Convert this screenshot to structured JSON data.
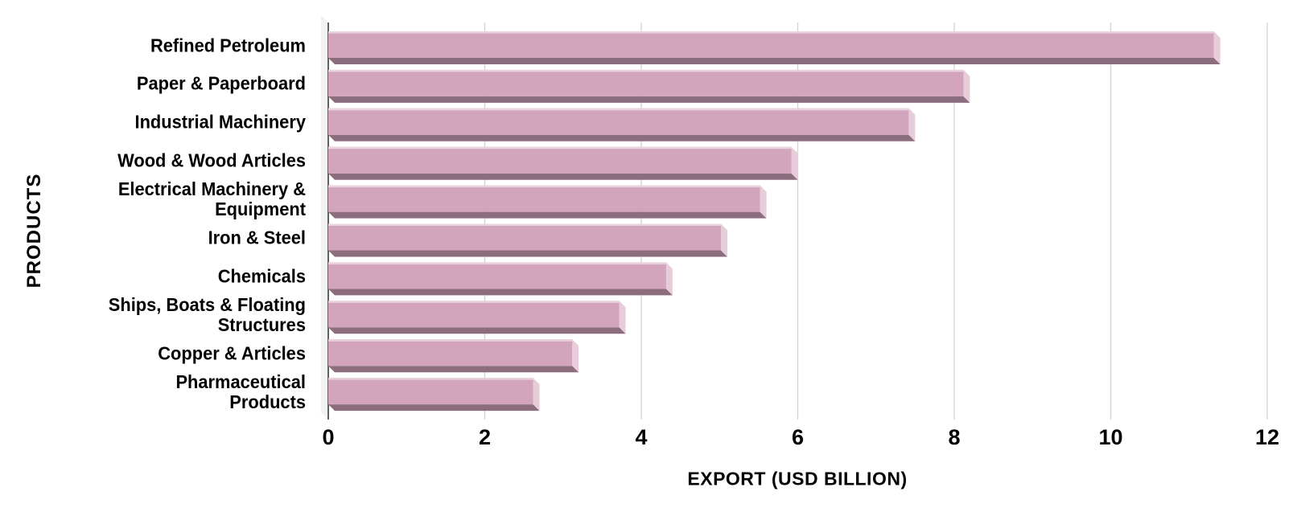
{
  "chart_data": {
    "type": "bar",
    "orientation": "horizontal",
    "style": "3d-bevel",
    "title": "",
    "xlabel": "EXPORT (USD BILLION)",
    "ylabel": "PRODUCTS",
    "categories": [
      "Refined Petroleum",
      "Paper & Paperboard",
      "Industrial Machinery",
      "Wood & Wood Articles",
      "Electrical Machinery & Equipment",
      "Iron & Steel",
      "Chemicals",
      "Ships, Boats & Floating Structures",
      "Copper & Articles",
      "Pharmaceutical Products"
    ],
    "categories_display": [
      [
        "Refined Petroleum"
      ],
      [
        "Paper & Paperboard"
      ],
      [
        "Industrial Machinery"
      ],
      [
        "Wood & Wood Articles"
      ],
      [
        "Electrical Machinery &",
        "Equipment"
      ],
      [
        "Iron & Steel"
      ],
      [
        "Chemicals"
      ],
      [
        "Ships, Boats & Floating",
        "Structures"
      ],
      [
        "Copper & Articles"
      ],
      [
        "Pharmaceutical",
        "Products"
      ]
    ],
    "values": [
      11.4,
      8.2,
      7.5,
      6.0,
      5.6,
      5.1,
      4.4,
      3.8,
      3.2,
      2.7
    ],
    "xlim": [
      0,
      12
    ],
    "xticks": [
      0,
      2,
      4,
      6,
      8,
      10,
      12
    ],
    "grid": true,
    "legend": false,
    "colors": {
      "bar_face": "#d3a5bc",
      "bar_highlight": "#e8d3de",
      "bar_cap": "#e7cdda",
      "bar_shadow": "#8b6d7d",
      "gridline": "#d5d5d5",
      "axis_line": "#3c3c3c",
      "wall": "#f2f2f2",
      "text": "#000000",
      "background": "#ffffff"
    }
  }
}
